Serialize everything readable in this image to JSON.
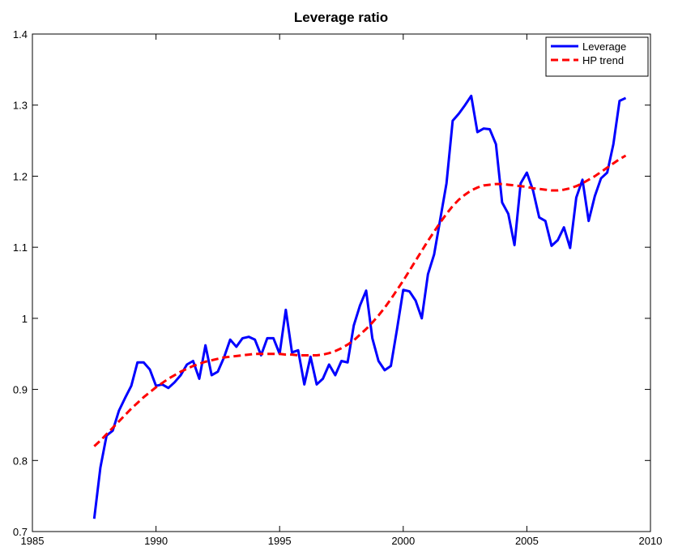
{
  "chart_data": {
    "type": "line",
    "title": "Leverage ratio",
    "x": [
      1987.5,
      1987.75,
      1988,
      1988.25,
      1988.5,
      1988.75,
      1989,
      1989.25,
      1989.5,
      1989.75,
      1990,
      1990.25,
      1990.5,
      1990.75,
      1991,
      1991.25,
      1991.5,
      1991.75,
      1992,
      1992.25,
      1992.5,
      1992.75,
      1993,
      1993.25,
      1993.5,
      1993.75,
      1994,
      1994.25,
      1994.5,
      1994.75,
      1995,
      1995.25,
      1995.5,
      1995.75,
      1996,
      1996.25,
      1996.5,
      1996.75,
      1997,
      1997.25,
      1997.5,
      1997.75,
      1998,
      1998.25,
      1998.5,
      1998.75,
      1999,
      1999.25,
      1999.5,
      1999.75,
      2000,
      2000.25,
      2000.5,
      2000.75,
      2001,
      2001.25,
      2001.5,
      2001.75,
      2002,
      2002.25,
      2002.5,
      2002.75,
      2003,
      2003.25,
      2003.5,
      2003.75,
      2004,
      2004.25,
      2004.5,
      2004.75,
      2005,
      2005.25,
      2005.5,
      2005.75,
      2006,
      2006.25,
      2006.5,
      2006.75,
      2007,
      2007.25,
      2007.5,
      2007.75,
      2008,
      2008.25,
      2008.5,
      2008.75,
      2009
    ],
    "series": [
      {
        "name": "Leverage",
        "color": "#0000ff",
        "dash": false,
        "values": [
          0.718,
          0.79,
          0.835,
          0.842,
          0.87,
          0.888,
          0.905,
          0.938,
          0.938,
          0.928,
          0.905,
          0.907,
          0.902,
          0.91,
          0.92,
          0.935,
          0.94,
          0.915,
          0.962,
          0.92,
          0.925,
          0.945,
          0.97,
          0.96,
          0.972,
          0.974,
          0.97,
          0.948,
          0.972,
          0.972,
          0.95,
          1.012,
          0.952,
          0.955,
          0.907,
          0.946,
          0.907,
          0.915,
          0.935,
          0.92,
          0.94,
          0.938,
          0.99,
          1.018,
          1.039,
          0.972,
          0.94,
          0.927,
          0.933,
          0.985,
          1.04,
          1.038,
          1.025,
          1.0,
          1.062,
          1.09,
          1.14,
          1.19,
          1.278,
          1.288,
          1.3,
          1.313,
          1.262,
          1.267,
          1.266,
          1.245,
          1.163,
          1.147,
          1.103,
          1.19,
          1.205,
          1.18,
          1.142,
          1.137,
          1.102,
          1.11,
          1.128,
          1.099,
          1.17,
          1.195,
          1.137,
          1.172,
          1.197,
          1.205,
          1.245,
          1.306,
          1.31
        ]
      },
      {
        "name": "HP trend",
        "color": "#ff0000",
        "dash": true,
        "values": [
          0.82,
          0.828,
          0.837,
          0.846,
          0.855,
          0.864,
          0.873,
          0.881,
          0.889,
          0.896,
          0.903,
          0.909,
          0.915,
          0.92,
          0.925,
          0.929,
          0.933,
          0.936,
          0.939,
          0.941,
          0.943,
          0.945,
          0.946,
          0.947,
          0.948,
          0.949,
          0.95,
          0.95,
          0.95,
          0.95,
          0.95,
          0.949,
          0.949,
          0.948,
          0.948,
          0.948,
          0.948,
          0.949,
          0.951,
          0.954,
          0.958,
          0.963,
          0.969,
          0.977,
          0.985,
          0.994,
          1.004,
          1.015,
          1.027,
          1.04,
          1.053,
          1.067,
          1.081,
          1.095,
          1.109,
          1.122,
          1.135,
          1.147,
          1.158,
          1.167,
          1.174,
          1.18,
          1.184,
          1.187,
          1.188,
          1.189,
          1.189,
          1.188,
          1.187,
          1.186,
          1.185,
          1.183,
          1.182,
          1.181,
          1.18,
          1.18,
          1.181,
          1.183,
          1.186,
          1.19,
          1.195,
          1.2,
          1.206,
          1.212,
          1.218,
          1.224,
          1.229
        ]
      }
    ],
    "xlim": [
      1985,
      2010
    ],
    "xticks": [
      1985,
      1990,
      1995,
      2000,
      2005,
      2010
    ],
    "ylim": [
      0.7,
      1.4
    ],
    "yticks": [
      0.7,
      0.8,
      0.9,
      1,
      1.1,
      1.2,
      1.3,
      1.4
    ],
    "grid": false,
    "legend": "upper right"
  }
}
